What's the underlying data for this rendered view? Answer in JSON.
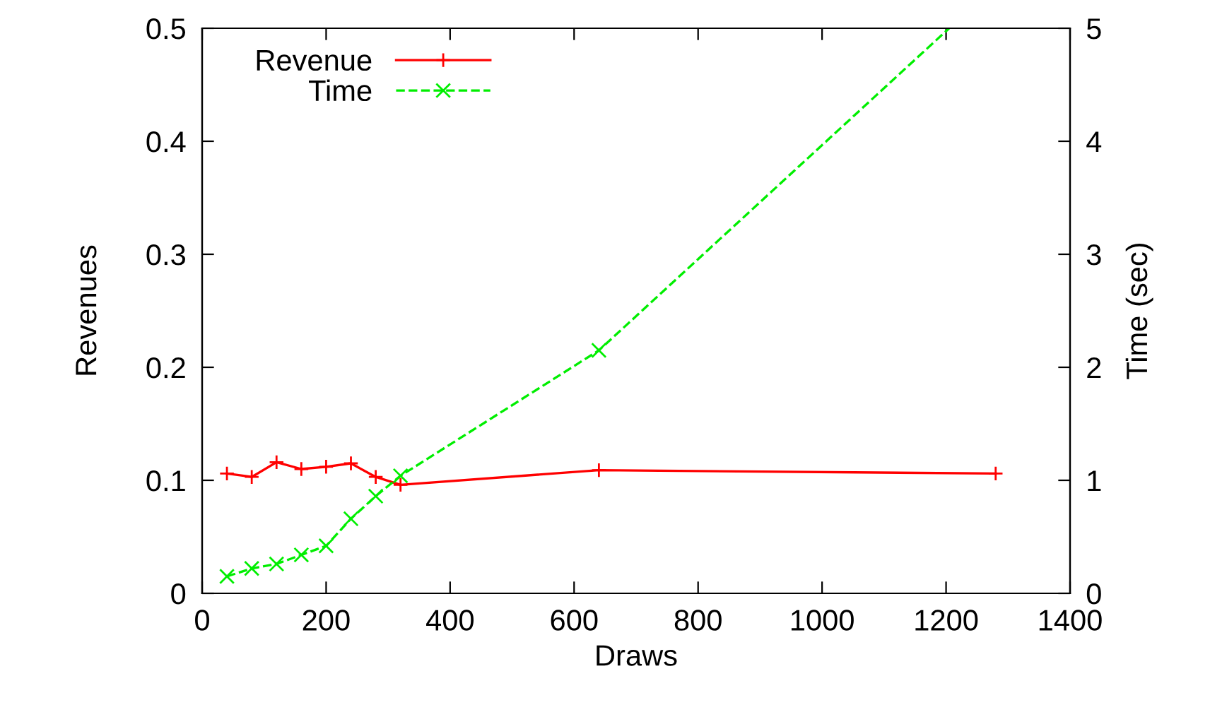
{
  "chart_data": {
    "type": "line",
    "xlabel": "Draws",
    "ylabel": "Revenues",
    "y2label": "Time (sec)",
    "xlim": [
      0,
      1400
    ],
    "xticks": [
      0,
      200,
      400,
      600,
      800,
      1000,
      1200,
      1400
    ],
    "ylim": [
      0,
      0.5
    ],
    "yticks": [
      0,
      0.1,
      0.2,
      0.3,
      0.4,
      0.5
    ],
    "y2lim": [
      0,
      5
    ],
    "y2ticks": [
      0,
      1,
      2,
      3,
      4,
      5
    ],
    "grid": false,
    "legend": "top left",
    "series": [
      {
        "name": "Revenue",
        "color": "#ff0000",
        "marker": "cross",
        "line_style": "solid",
        "x": [
          40,
          80,
          120,
          160,
          200,
          240,
          280,
          320,
          640,
          1280
        ],
        "values": [
          0.106,
          0.103,
          0.116,
          0.11,
          0.112,
          0.115,
          0.103,
          0.096,
          0.109,
          0.106
        ]
      },
      {
        "name": "Time",
        "color": "#00ee00",
        "marker": "x",
        "line_style": "dashed",
        "axis": "y2",
        "x": [
          40,
          80,
          120,
          160,
          200,
          240,
          280,
          320,
          640,
          1205
        ],
        "values": [
          0.15,
          0.22,
          0.26,
          0.34,
          0.42,
          0.66,
          0.86,
          1.04,
          2.15,
          5
        ]
      }
    ]
  }
}
